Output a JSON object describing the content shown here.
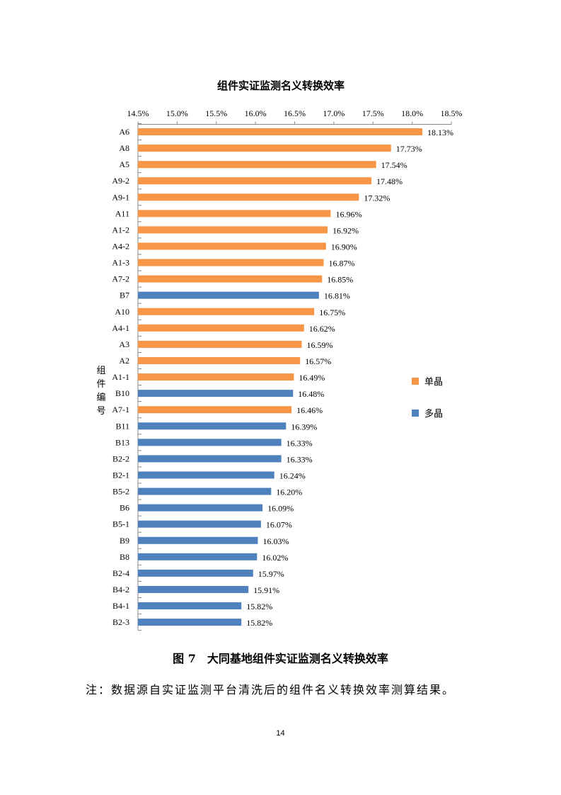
{
  "chart_data": {
    "type": "bar",
    "orientation": "horizontal",
    "title": "组件实证监测名义转换效率",
    "ylabel": "组件编号",
    "xlim": [
      14.5,
      18.5
    ],
    "xticks": [
      "14.5%",
      "15.0%",
      "15.5%",
      "16.0%",
      "16.5%",
      "17.0%",
      "17.5%",
      "18.0%",
      "18.5%"
    ],
    "x_axis_position": "top",
    "grid": false,
    "legend_position": "right",
    "legend": [
      {
        "name": "单晶",
        "color": "#F79646"
      },
      {
        "name": "多晶",
        "color": "#4F81BD"
      }
    ],
    "categories": [
      "A6",
      "A8",
      "A5",
      "A9-2",
      "A9-1",
      "A11",
      "A1-2",
      "A4-2",
      "A1-3",
      "A7-2",
      "B7",
      "A10",
      "A4-1",
      "A3",
      "A2",
      "A1-1",
      "B10",
      "A7-1",
      "B11",
      "B13",
      "B2-2",
      "B2-1",
      "B5-2",
      "B6",
      "B5-1",
      "B9",
      "B8",
      "B2-4",
      "B4-2",
      "B4-1",
      "B2-3"
    ],
    "values": [
      18.13,
      17.73,
      17.54,
      17.48,
      17.32,
      16.96,
      16.92,
      16.9,
      16.87,
      16.85,
      16.81,
      16.75,
      16.62,
      16.59,
      16.57,
      16.49,
      16.48,
      16.46,
      16.39,
      16.33,
      16.33,
      16.24,
      16.2,
      16.09,
      16.07,
      16.03,
      16.02,
      15.97,
      15.91,
      15.82,
      15.82
    ],
    "value_labels": [
      "18.13%",
      "17.73%",
      "17.54%",
      "17.48%",
      "17.32%",
      "16.96%",
      "16.92%",
      "16.90%",
      "16.87%",
      "16.85%",
      "16.81%",
      "16.75%",
      "16.62%",
      "16.59%",
      "16.57%",
      "16.49%",
      "16.48%",
      "16.46%",
      "16.39%",
      "16.33%",
      "16.33%",
      "16.24%",
      "16.20%",
      "16.09%",
      "16.07%",
      "16.03%",
      "16.02%",
      "15.97%",
      "15.91%",
      "15.82%",
      "15.82%"
    ],
    "groups": [
      "单晶",
      "单晶",
      "单晶",
      "单晶",
      "单晶",
      "单晶",
      "单晶",
      "单晶",
      "单晶",
      "单晶",
      "多晶",
      "单晶",
      "单晶",
      "单晶",
      "单晶",
      "单晶",
      "多晶",
      "单晶",
      "多晶",
      "多晶",
      "多晶",
      "多晶",
      "多晶",
      "多晶",
      "多晶",
      "多晶",
      "多晶",
      "多晶",
      "多晶",
      "多晶",
      "多晶"
    ]
  },
  "caption": "图 7　大同基地组件实证监测名义转换效率",
  "note": "注：数据源自实证监测平台清洗后的组件名义转换效率测算结果。",
  "page_number": "14"
}
